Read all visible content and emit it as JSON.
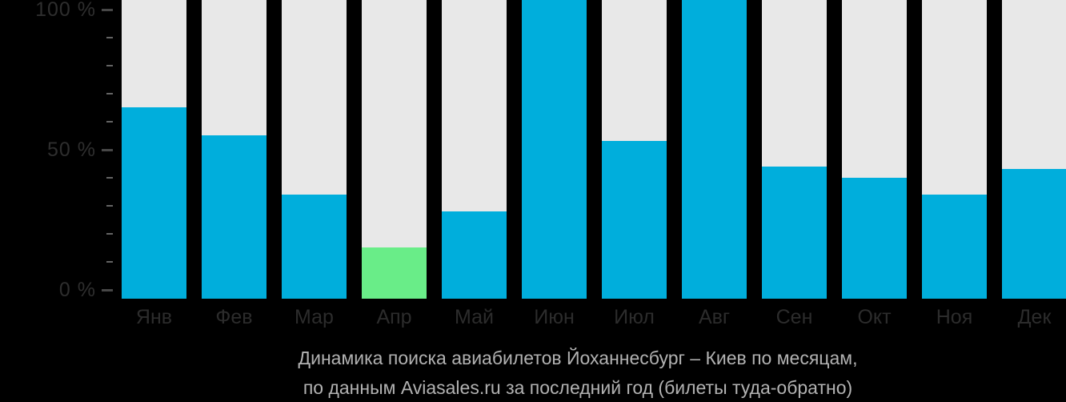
{
  "chart_data": {
    "type": "bar",
    "title": "Динамика поиска авиабилетов Йоханнесбург – Киев по месяцам, по данным Aviasales.ru за последний год (билеты туда-обратно)",
    "title_lines": [
      "Динамика поиска авиабилетов Йоханнесбург – Киев по месяцам,",
      "по данным Aviasales.ru за последний год (билеты туда-обратно)"
    ],
    "categories": [
      "Янв",
      "Фев",
      "Мар",
      "Апр",
      "Май",
      "Июн",
      "Июл",
      "Авг",
      "Сен",
      "Окт",
      "Ноя",
      "Дек"
    ],
    "values": [
      65,
      55,
      34,
      15,
      28,
      100,
      53,
      100,
      44,
      40,
      34,
      43
    ],
    "unit": "%",
    "highlight_index": 3,
    "xlabel": "",
    "ylabel": "",
    "grid": false,
    "legend": false,
    "y_axis": {
      "min": 0,
      "max": 100,
      "minor_step": 10,
      "major_ticks": [
        0,
        50,
        100
      ],
      "tick_labels": {
        "0": "0 %",
        "50": "50 %",
        "100": "100 %"
      }
    },
    "colors": {
      "bar": "#00aedc",
      "highlight": "#69ed88",
      "track": "#e8e8e8",
      "background": "#000000",
      "axis_text": "#2c2c2c",
      "caption_text": "#b2b2b2"
    }
  }
}
